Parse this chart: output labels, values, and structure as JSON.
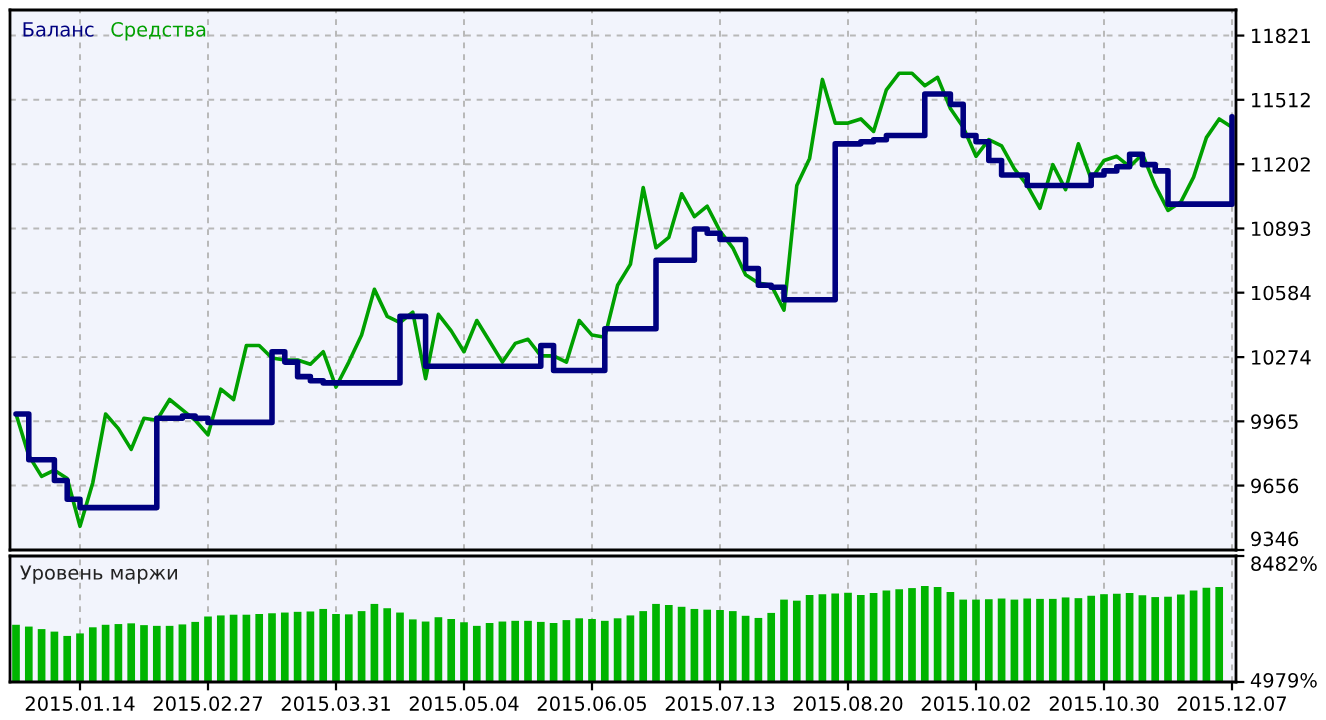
{
  "chart_data": [
    {
      "type": "line",
      "legend": "top left",
      "grid": true,
      "tick_labels": "y",
      "categories": [
        null,
        null,
        null,
        null,
        null,
        "2015.01.14",
        null,
        null,
        null,
        null,
        null,
        null,
        null,
        null,
        null,
        "2015.02.27",
        null,
        null,
        null,
        null,
        null,
        null,
        null,
        null,
        null,
        "2015.03.31",
        null,
        null,
        null,
        null,
        null,
        null,
        null,
        null,
        null,
        "2015.05.04",
        null,
        null,
        null,
        null,
        null,
        null,
        null,
        null,
        null,
        "2015.06.05",
        null,
        null,
        null,
        null,
        null,
        null,
        null,
        null,
        null,
        "2015.07.13",
        null,
        null,
        null,
        null,
        null,
        null,
        null,
        null,
        null,
        "2015.08.20",
        null,
        null,
        null,
        null,
        null,
        null,
        null,
        null,
        null,
        "2015.10.02",
        null,
        null,
        null,
        null,
        null,
        null,
        null,
        null,
        null,
        "2015.10.30",
        null,
        null,
        null,
        null,
        null,
        null,
        null,
        null,
        null,
        "2015.12.07"
      ],
      "ylim": [
        9346,
        11944
      ],
      "yticks": [
        9346,
        9656,
        9965,
        10274,
        10584,
        10893,
        11202,
        11512,
        11821
      ],
      "series": [
        {
          "name": "Средства",
          "color": "#00a000",
          "type": "line",
          "values": [
            10000,
            9800,
            9700,
            9730,
            9690,
            9460,
            9670,
            10000,
            9930,
            9830,
            9980,
            9970,
            10070,
            10020,
            9970,
            9900,
            10120,
            10070,
            10330,
            10330,
            10270,
            10260,
            10260,
            10240,
            10300,
            10130,
            10250,
            10380,
            10600,
            10470,
            10440,
            10490,
            10170,
            10480,
            10400,
            10300,
            10450,
            10350,
            10250,
            10340,
            10360,
            10280,
            10280,
            10250,
            10450,
            10380,
            10370,
            10620,
            10720,
            11090,
            10800,
            10850,
            11060,
            10950,
            11000,
            10880,
            10800,
            10670,
            10630,
            10620,
            10500,
            11100,
            11230,
            11610,
            11400,
            11400,
            11420,
            11360,
            11560,
            11640,
            11640,
            11580,
            11620,
            11470,
            11380,
            11240,
            11320,
            11290,
            11180,
            11100,
            10990,
            11200,
            11080,
            11300,
            11130,
            11220,
            11240,
            11190,
            11250,
            11100,
            10980,
            11020,
            11140,
            11330,
            11420,
            11380
          ]
        },
        {
          "name": "Баланс",
          "color": "#000080",
          "type": "step",
          "values": [
            10000,
            9780,
            9780,
            9680,
            9590,
            9550,
            9550,
            9550,
            9550,
            9550,
            9550,
            9980,
            9980,
            9990,
            9980,
            9960,
            9960,
            9960,
            9960,
            9960,
            10300,
            10250,
            10180,
            10160,
            10150,
            10150,
            10150,
            10150,
            10150,
            10150,
            10470,
            10470,
            10230,
            10230,
            10230,
            10230,
            10230,
            10230,
            10230,
            10230,
            10230,
            10330,
            10210,
            10210,
            10210,
            10210,
            10410,
            10410,
            10410,
            10410,
            10740,
            10740,
            10740,
            10890,
            10870,
            10840,
            10840,
            10700,
            10620,
            10610,
            10550,
            10550,
            10550,
            10550,
            11300,
            11300,
            11310,
            11320,
            11340,
            11340,
            11340,
            11540,
            11540,
            11490,
            11340,
            11310,
            11220,
            11150,
            11150,
            11100,
            11100,
            11100,
            11100,
            11100,
            11150,
            11170,
            11190,
            11250,
            11200,
            11170,
            11010,
            11010,
            11010,
            11010,
            11010,
            11430
          ]
        }
      ]
    },
    {
      "type": "bar",
      "title": "Уровень маржи",
      "grid": "x",
      "color": "#00b400",
      "categories": [
        null,
        null,
        null,
        null,
        null,
        "2015.01.14",
        null,
        null,
        null,
        null,
        null,
        null,
        null,
        null,
        null,
        "2015.02.27",
        null,
        null,
        null,
        null,
        null,
        null,
        null,
        null,
        null,
        "2015.03.31",
        null,
        null,
        null,
        null,
        null,
        null,
        null,
        null,
        null,
        "2015.05.04",
        null,
        null,
        null,
        null,
        null,
        null,
        null,
        null,
        null,
        "2015.06.05",
        null,
        null,
        null,
        null,
        null,
        null,
        null,
        null,
        null,
        "2015.07.13",
        null,
        null,
        null,
        null,
        null,
        null,
        null,
        null,
        null,
        "2015.08.20",
        null,
        null,
        null,
        null,
        null,
        null,
        null,
        null,
        null,
        "2015.10.02",
        null,
        null,
        null,
        null,
        null,
        null,
        null,
        null,
        null,
        "2015.10.30",
        null,
        null,
        null,
        null,
        null,
        null,
        null,
        null,
        null,
        "2015.12.07"
      ],
      "ylim": [
        4979,
        8482
      ],
      "yticks": [
        {
          "value": 4979,
          "label": "4979%"
        },
        {
          "value": 8482,
          "label": "8482%"
        }
      ],
      "values": [
        6570,
        6520,
        6450,
        6380,
        6260,
        6330,
        6500,
        6570,
        6590,
        6610,
        6560,
        6540,
        6540,
        6580,
        6650,
        6800,
        6830,
        6850,
        6850,
        6870,
        6890,
        6910,
        6930,
        6940,
        7010,
        6870,
        6860,
        6950,
        7150,
        7030,
        6910,
        6720,
        6660,
        6780,
        6730,
        6640,
        6540,
        6620,
        6660,
        6680,
        6680,
        6650,
        6620,
        6700,
        6750,
        6730,
        6680,
        6750,
        6830,
        6950,
        7150,
        7120,
        7070,
        7010,
        6990,
        6980,
        6950,
        6820,
        6760,
        6900,
        7270,
        7240,
        7400,
        7420,
        7440,
        7460,
        7400,
        7450,
        7520,
        7560,
        7590,
        7650,
        7620,
        7480,
        7270,
        7270,
        7280,
        7300,
        7270,
        7300,
        7290,
        7290,
        7330,
        7310,
        7380,
        7420,
        7430,
        7450,
        7390,
        7340,
        7350,
        7410,
        7520,
        7600,
        7620,
        null
      ]
    }
  ]
}
